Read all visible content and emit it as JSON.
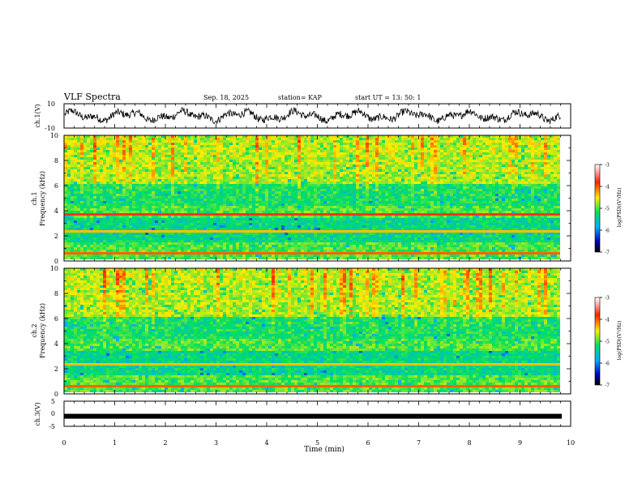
{
  "header": {
    "title": "VLF Spectra",
    "date": "Sep. 18, 2025",
    "station": "station= KAP",
    "start": "start  UT =   13: 50: 1"
  },
  "chart_data": [
    {
      "type": "line",
      "name": "ch1-waveform",
      "ylabel": "ch.1(V)",
      "ylim": [
        -10,
        10
      ],
      "ytick_labels": [
        "10",
        "-10"
      ],
      "xlim": [
        0,
        10
      ],
      "description_series": "noisy waveform around 0 V"
    },
    {
      "type": "heatmap",
      "name": "ch1-spectrogram",
      "ylabel_top": "ch.1",
      "ylabel": "Frequency (kHz)",
      "ylim": [
        0,
        10
      ],
      "ytick_labels": [
        "0",
        "2",
        "4",
        "6",
        "8",
        "10"
      ],
      "xlim": [
        0,
        9.8
      ],
      "colorbar": {
        "label": "log(PSD)(V²/Hz)",
        "range": [
          -7,
          -3
        ],
        "tick_labels": [
          "-3",
          "-4",
          "-5",
          "-6",
          "-7"
        ]
      }
    },
    {
      "type": "heatmap",
      "name": "ch2-spectrogram",
      "ylabel_top": "ch.2",
      "ylabel": "Frequency (kHz)",
      "ylim": [
        0,
        10
      ],
      "ytick_labels": [
        "0",
        "2",
        "4",
        "6",
        "8",
        "10"
      ],
      "xlim": [
        0,
        9.8
      ],
      "colorbar": {
        "label": "log(PSD)(V²/Hz)",
        "range": [
          -7,
          -3
        ],
        "tick_labels": [
          "-3",
          "-4",
          "-5",
          "-6",
          "-7"
        ]
      }
    },
    {
      "type": "line",
      "name": "ch3-waveform",
      "ylabel": "ch.3(V)",
      "ylim": [
        -5,
        5
      ],
      "ytick_labels": [
        "5",
        "0",
        "-5"
      ],
      "xlim": [
        0,
        10
      ],
      "level": -1
    }
  ],
  "xaxis": {
    "label": "Time (min)",
    "range": [
      0,
      10
    ],
    "tick_labels": [
      "0",
      "1",
      "2",
      "3",
      "4",
      "5",
      "6",
      "7",
      "8",
      "9",
      "10"
    ]
  },
  "colors": {
    "line": "#000000",
    "background": "#ffffff"
  }
}
